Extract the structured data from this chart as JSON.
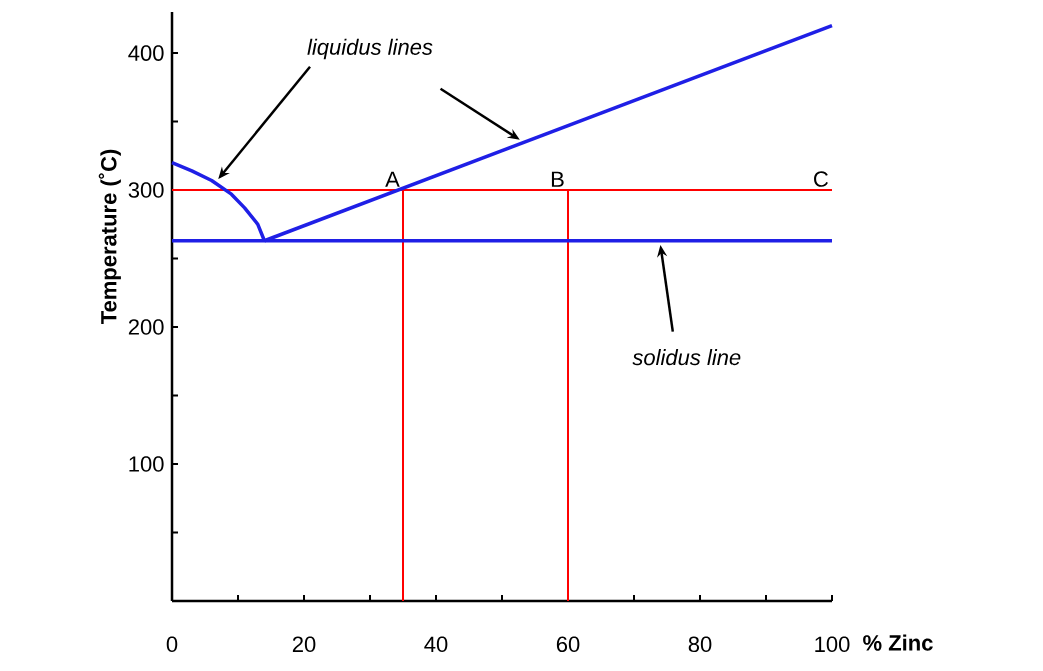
{
  "chart_data": {
    "type": "line",
    "xlabel": "% Zinc",
    "ylabel": "Temperature (˚C)",
    "xlim": [
      0,
      100
    ],
    "ylim": [
      0,
      430
    ],
    "xticks": [
      0,
      {
        "value": 10,
        "label": null
      },
      20,
      {
        "value": 30,
        "label": null
      },
      40,
      {
        "value": 50,
        "label": null
      },
      60,
      {
        "value": 70,
        "label": null
      },
      80,
      {
        "value": 90,
        "label": null
      },
      100
    ],
    "yticks": [
      {
        "value": 50,
        "label": null
      },
      100,
      {
        "value": 150,
        "label": null
      },
      200,
      {
        "value": 250,
        "label": null
      },
      300,
      {
        "value": 350,
        "label": null
      },
      400
    ],
    "series": [
      {
        "color": "#ff0000",
        "x": [
          0,
          100
        ],
        "values": [
          300,
          300
        ]
      },
      {
        "color": "#ff0000",
        "x": [
          35,
          35
        ],
        "values": [
          0,
          300
        ]
      },
      {
        "color": "#ff0000",
        "x": [
          60,
          60
        ],
        "values": [
          0,
          300
        ]
      },
      {
        "color": "#1f1fe6",
        "x": [
          0,
          3,
          6,
          9,
          11,
          13,
          14
        ],
        "values": [
          320,
          314,
          307,
          297,
          287,
          275,
          263
        ]
      },
      {
        "color": "#1f1fe6",
        "x": [
          14,
          100
        ],
        "values": [
          263,
          420
        ]
      },
      {
        "color": "#1f1fe6",
        "x": [
          0,
          100
        ],
        "values": [
          263,
          263
        ]
      }
    ],
    "annotations": [
      {
        "text": "A",
        "x": 35,
        "y": 300
      },
      {
        "text": "B",
        "x": 60,
        "y": 300
      },
      {
        "text": "C",
        "x": 100,
        "y": 300
      },
      "liquidus lines",
      "solidus line"
    ],
    "marker": "none",
    "line_style": "solid"
  }
}
